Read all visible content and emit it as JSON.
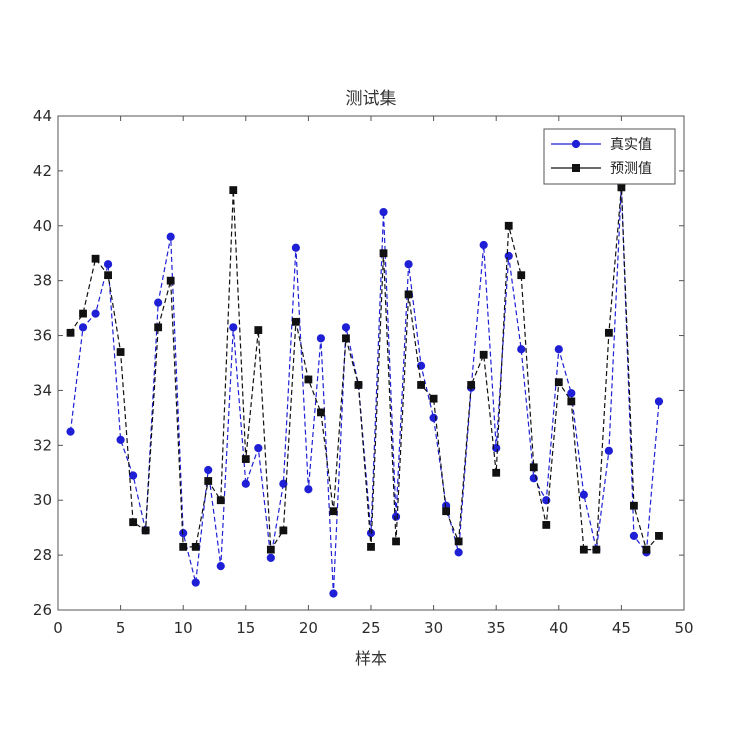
{
  "chart_data": {
    "type": "line",
    "title": "测试集",
    "xlabel": "样本",
    "ylabel": "",
    "xlim": [
      0,
      50
    ],
    "ylim": [
      26,
      44
    ],
    "xticks": [
      0,
      5,
      10,
      15,
      20,
      25,
      30,
      35,
      40,
      45,
      50
    ],
    "yticks": [
      26,
      28,
      30,
      32,
      34,
      36,
      38,
      40,
      42,
      44
    ],
    "grid": false,
    "legend_position": "top-right",
    "series": [
      {
        "name": "真实值",
        "color": "#1f1fd6",
        "line_style": "dashed",
        "marker": "circle",
        "x": [
          1,
          2,
          3,
          4,
          5,
          6,
          7,
          8,
          9,
          10,
          11,
          12,
          13,
          14,
          15,
          16,
          17,
          18,
          19,
          20,
          21,
          22,
          23,
          24,
          25,
          26,
          27,
          28,
          29,
          30,
          31,
          32,
          33,
          34,
          35,
          36,
          37,
          38,
          39,
          40,
          41,
          42,
          43,
          44,
          45,
          46,
          47,
          48
        ],
        "values": [
          32.5,
          36.3,
          36.8,
          38.6,
          32.2,
          30.9,
          28.9,
          37.2,
          39.6,
          28.8,
          27.0,
          31.1,
          27.6,
          36.3,
          30.6,
          31.9,
          27.9,
          30.6,
          39.2,
          30.4,
          35.9,
          26.6,
          36.3,
          34.2,
          28.8,
          40.5,
          29.4,
          38.6,
          34.9,
          33.0,
          29.8,
          28.1,
          34.1,
          39.3,
          31.9,
          38.9,
          35.5,
          30.8,
          30.0,
          35.5,
          33.9,
          30.2,
          28.2,
          31.8,
          41.5,
          28.7,
          28.1,
          33.6
        ]
      },
      {
        "name": "预测值",
        "color": "#111111",
        "line_style": "dashed",
        "marker": "square",
        "x": [
          1,
          2,
          3,
          4,
          5,
          6,
          7,
          8,
          9,
          10,
          11,
          12,
          13,
          14,
          15,
          16,
          17,
          18,
          19,
          20,
          21,
          22,
          23,
          24,
          25,
          26,
          27,
          28,
          29,
          30,
          31,
          32,
          33,
          34,
          35,
          36,
          37,
          38,
          39,
          40,
          41,
          42,
          43,
          44,
          45,
          46,
          47,
          48
        ],
        "values": [
          36.1,
          36.8,
          38.8,
          38.2,
          35.4,
          29.2,
          28.9,
          36.3,
          38.0,
          28.3,
          28.3,
          30.7,
          30.0,
          41.3,
          31.5,
          36.2,
          28.2,
          28.9,
          36.5,
          34.4,
          33.2,
          29.6,
          35.9,
          34.2,
          28.3,
          39.0,
          28.5,
          37.5,
          34.2,
          33.7,
          29.6,
          28.5,
          34.2,
          35.3,
          31.0,
          40.0,
          38.2,
          31.2,
          29.1,
          34.3,
          33.6,
          28.2,
          28.2,
          36.1,
          41.4,
          29.8,
          28.2,
          28.7
        ]
      }
    ]
  }
}
